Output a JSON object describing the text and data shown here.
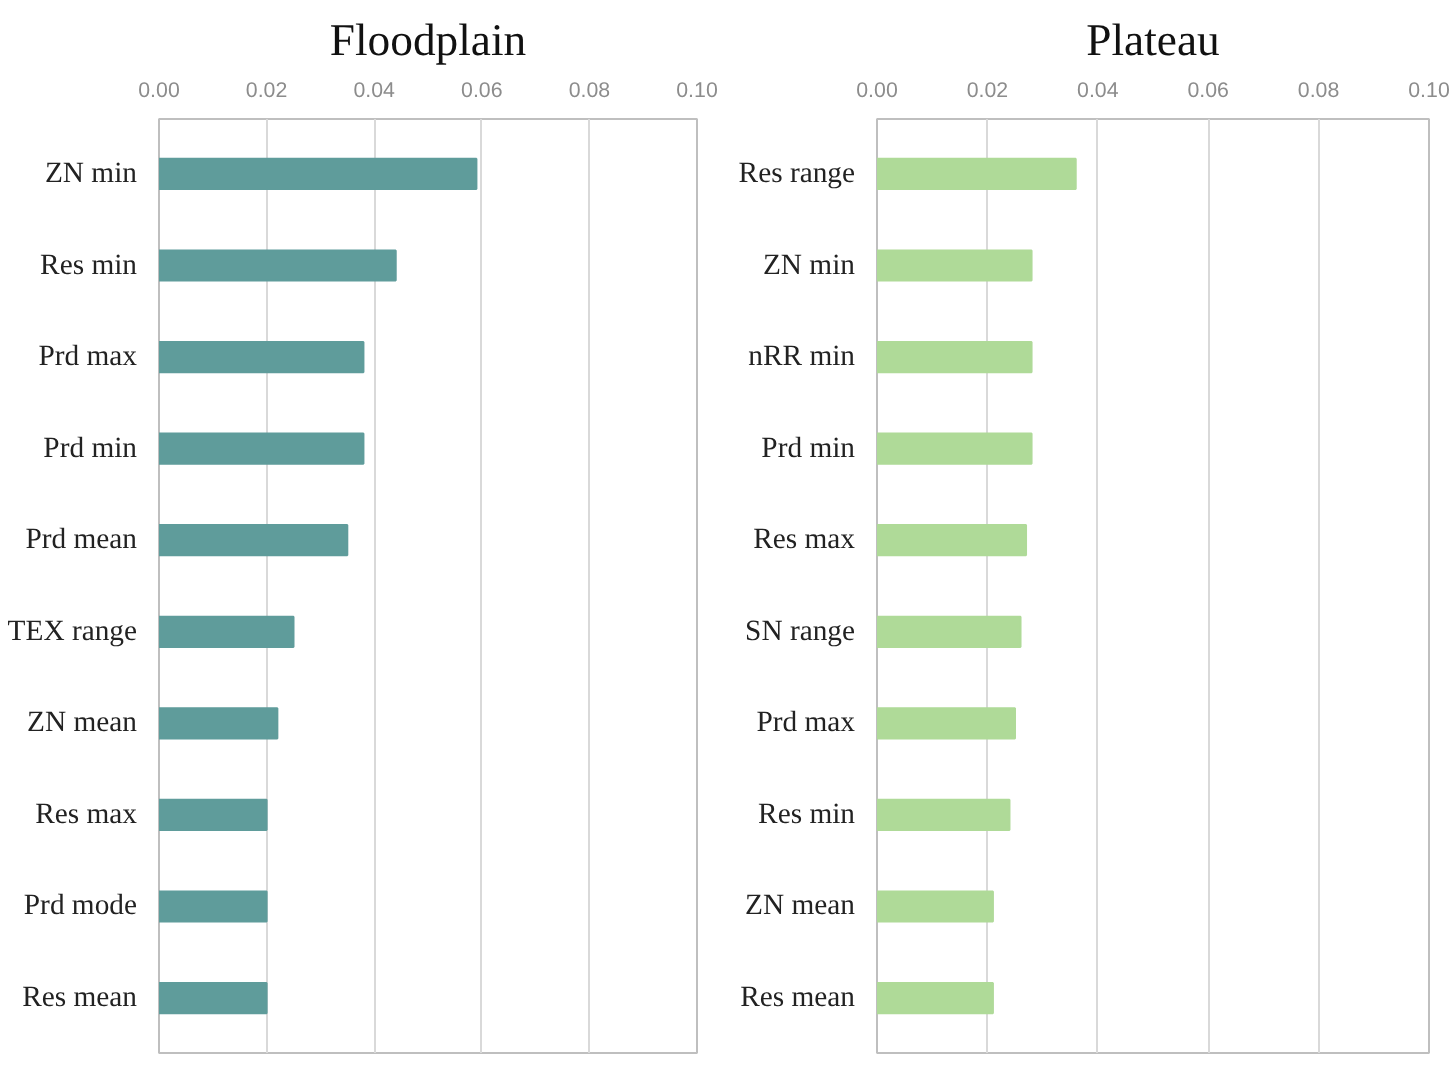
{
  "chart_data": [
    {
      "type": "bar",
      "orientation": "horizontal",
      "title": "Floodplain",
      "categories": [
        "ZN min",
        "Res min",
        "Prd max",
        "Prd min",
        "Prd mean",
        "TEX range",
        "ZN mean",
        "Res max",
        "Prd mode",
        "Res mean"
      ],
      "values": [
        0.059,
        0.044,
        0.038,
        0.038,
        0.035,
        0.025,
        0.022,
        0.02,
        0.02,
        0.02
      ],
      "color": "#5f9c9b",
      "xlim": [
        0,
        0.1
      ],
      "xticks": [
        {
          "value": 0,
          "label": "0.00"
        },
        {
          "value": 0.02,
          "label": "0.02"
        },
        {
          "value": 0.04,
          "label": "0.04"
        },
        {
          "value": 0.06,
          "label": "0.06"
        },
        {
          "value": 0.08,
          "label": "0.08"
        },
        {
          "value": 0.1,
          "label": "0.10"
        }
      ],
      "grid": "x"
    },
    {
      "type": "bar",
      "orientation": "horizontal",
      "title": "Plateau",
      "categories": [
        "Res range",
        "ZN min",
        "nRR min",
        "Prd min",
        "Res max",
        "SN range",
        "Prd max",
        "Res min",
        "ZN mean",
        "Res mean"
      ],
      "values": [
        0.036,
        0.028,
        0.028,
        0.028,
        0.027,
        0.026,
        0.025,
        0.024,
        0.021,
        0.021
      ],
      "color": "#afda98",
      "xlim": [
        0,
        0.1
      ],
      "xticks": [
        {
          "value": 0,
          "label": "0.00"
        },
        {
          "value": 0.02,
          "label": "0.02"
        },
        {
          "value": 0.04,
          "label": "0.04"
        },
        {
          "value": 0.06,
          "label": "0.06"
        },
        {
          "value": 0.08,
          "label": "0.08"
        },
        {
          "value": 0.1,
          "label": "0.10"
        }
      ],
      "grid": "x"
    }
  ]
}
